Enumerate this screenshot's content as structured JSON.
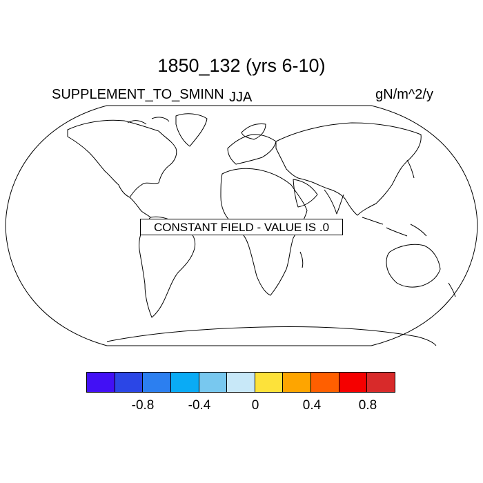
{
  "title": "1850_132 (yrs 6-10)",
  "left_label": "SUPPLEMENT_TO_SMINN",
  "center_label": "JJA",
  "right_label": "gN/m^2/y",
  "notice": "CONSTANT FIELD - VALUE IS .0",
  "colorbar": {
    "colors": [
      "#4210f5",
      "#2b46e6",
      "#2c7ff0",
      "#0aabf5",
      "#78c8ef",
      "#c8e8f8",
      "#fde23a",
      "#fea500",
      "#ff5f00",
      "#f50000",
      "#d82a2a"
    ],
    "tick_labels": [
      "-0.8",
      "-0.4",
      "0",
      "0.4",
      "0.8"
    ]
  }
}
